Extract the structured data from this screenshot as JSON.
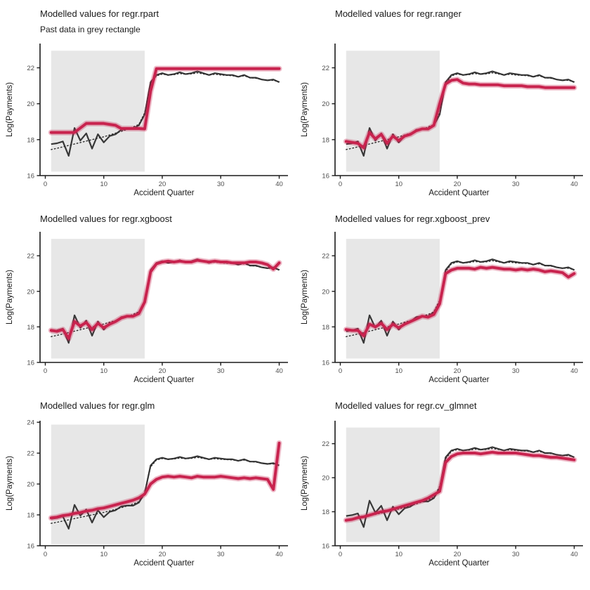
{
  "theme": {
    "accent": "#C8234E",
    "accent_halo": "rgba(200,35,78,0.32)",
    "actual_line": "#383838",
    "underlying_line": "#2b2b2b",
    "past_rect": "#E7E7E7",
    "axis": "#1a1a1a",
    "tick_text": "#4D4D4D",
    "title_text": "#1a1a1a"
  },
  "chart_data": {
    "type": "line",
    "layout": "2x3-grid",
    "x_label": "Accident Quarter",
    "y_label": "Log(Payments)",
    "x_ticks": [
      0,
      10,
      20,
      30,
      40
    ],
    "x_first": 1,
    "legend": "none",
    "series_names": [
      "actual",
      "underlying",
      "modelled"
    ],
    "shared": {
      "actual": [
        17.75,
        17.8,
        17.9,
        17.1,
        18.65,
        17.95,
        18.35,
        17.5,
        18.3,
        17.85,
        18.2,
        18.3,
        18.55,
        18.6,
        18.6,
        18.8,
        19.4,
        21.2,
        21.6,
        21.7,
        21.6,
        21.65,
        21.75,
        21.65,
        21.7,
        21.8,
        21.7,
        21.6,
        21.7,
        21.65,
        21.6,
        21.6,
        21.5,
        21.6,
        21.45,
        21.45,
        21.35,
        21.3,
        21.35,
        21.2
      ],
      "underlying": [
        17.45,
        17.52,
        17.6,
        17.68,
        17.76,
        17.84,
        17.92,
        18.0,
        18.08,
        18.16,
        18.26,
        18.36,
        18.46,
        18.58,
        18.7,
        18.85,
        19.5,
        21.1,
        21.55,
        21.65,
        21.6,
        21.62,
        21.68,
        21.64,
        21.66,
        21.72,
        21.66,
        21.6,
        21.64,
        21.6,
        21.58,
        21.56,
        21.5,
        21.55,
        21.45,
        21.42,
        21.35,
        21.3,
        21.3,
        21.22
      ]
    },
    "panels": [
      {
        "id": "regr.rpart",
        "title": "Modelled values for regr.rpart",
        "subtitle": "Past data in grey rectangle",
        "y_ticks": [
          16,
          18,
          20,
          22
        ],
        "y_lim": [
          16,
          23.35
        ],
        "past_rect": {
          "x0": 1,
          "x1": 17,
          "y0": 16.22,
          "y1": 22.95
        },
        "modelled": [
          18.4,
          18.4,
          18.4,
          18.4,
          18.4,
          18.65,
          18.9,
          18.9,
          18.9,
          18.9,
          18.85,
          18.8,
          18.62,
          18.62,
          18.62,
          18.62,
          18.6,
          20.7,
          21.95,
          21.95,
          21.95,
          21.95,
          21.95,
          21.95,
          21.95,
          21.95,
          21.95,
          21.95,
          21.95,
          21.95,
          21.95,
          21.95,
          21.95,
          21.95,
          21.95,
          21.95,
          21.95,
          21.95,
          21.95,
          21.95
        ]
      },
      {
        "id": "regr.ranger",
        "title": "Modelled values for regr.ranger",
        "subtitle": "",
        "y_ticks": [
          16,
          18,
          20,
          22
        ],
        "y_lim": [
          16,
          23.35
        ],
        "past_rect": {
          "x0": 1,
          "x1": 17,
          "y0": 16.22,
          "y1": 22.95
        },
        "modelled": [
          17.9,
          17.85,
          17.8,
          17.55,
          18.4,
          18.05,
          18.3,
          17.8,
          18.2,
          17.95,
          18.2,
          18.3,
          18.5,
          18.6,
          18.6,
          18.8,
          20.0,
          21.1,
          21.3,
          21.35,
          21.15,
          21.1,
          21.1,
          21.05,
          21.05,
          21.05,
          21.05,
          21.0,
          21.0,
          21.0,
          21.0,
          20.95,
          20.95,
          20.95,
          20.9,
          20.9,
          20.9,
          20.9,
          20.9,
          20.9
        ]
      },
      {
        "id": "regr.xgboost",
        "title": "Modelled values for regr.xgboost",
        "subtitle": "",
        "y_ticks": [
          16,
          18,
          20,
          22
        ],
        "y_lim": [
          16,
          23.35
        ],
        "past_rect": {
          "x0": 1,
          "x1": 17,
          "y0": 16.22,
          "y1": 22.95
        },
        "modelled": [
          17.8,
          17.75,
          17.85,
          17.35,
          18.3,
          18.05,
          18.25,
          17.85,
          18.2,
          17.95,
          18.15,
          18.3,
          18.5,
          18.6,
          18.6,
          18.75,
          19.4,
          21.1,
          21.55,
          21.65,
          21.7,
          21.65,
          21.7,
          21.65,
          21.65,
          21.75,
          21.7,
          21.65,
          21.7,
          21.65,
          21.65,
          21.6,
          21.6,
          21.6,
          21.65,
          21.65,
          21.6,
          21.5,
          21.25,
          21.6
        ]
      },
      {
        "id": "regr.xgboost_prev",
        "title": "Modelled values for regr.xgboost_prev",
        "subtitle": "",
        "y_ticks": [
          16,
          18,
          20,
          22
        ],
        "y_lim": [
          16,
          23.35
        ],
        "past_rect": {
          "x0": 1,
          "x1": 17,
          "y0": 16.22,
          "y1": 22.95
        },
        "modelled": [
          17.85,
          17.8,
          17.8,
          17.5,
          18.15,
          18.0,
          18.2,
          17.85,
          18.15,
          17.95,
          18.15,
          18.3,
          18.45,
          18.6,
          18.55,
          18.7,
          19.3,
          21.0,
          21.2,
          21.3,
          21.3,
          21.3,
          21.25,
          21.35,
          21.3,
          21.35,
          21.3,
          21.25,
          21.25,
          21.2,
          21.25,
          21.2,
          21.25,
          21.2,
          21.1,
          21.15,
          21.1,
          21.05,
          20.8,
          21.0
        ]
      },
      {
        "id": "regr.glm",
        "title": "Modelled values for regr.glm",
        "subtitle": "",
        "y_ticks": [
          16,
          18,
          20,
          22,
          24
        ],
        "y_lim": [
          16,
          24.1
        ],
        "past_rect": {
          "x0": 1,
          "x1": 17,
          "y0": 16.1,
          "y1": 23.85
        },
        "modelled": [
          17.8,
          17.85,
          17.95,
          18.0,
          18.1,
          18.15,
          18.25,
          18.3,
          18.4,
          18.45,
          18.55,
          18.65,
          18.75,
          18.85,
          18.95,
          19.1,
          19.35,
          20.0,
          20.3,
          20.45,
          20.5,
          20.45,
          20.5,
          20.45,
          20.4,
          20.5,
          20.45,
          20.45,
          20.45,
          20.5,
          20.45,
          20.4,
          20.35,
          20.4,
          20.35,
          20.4,
          20.35,
          20.3,
          19.65,
          22.65
        ]
      },
      {
        "id": "regr.cv_glmnet",
        "title": "Modelled values for regr.cv_glmnet",
        "subtitle": "",
        "y_ticks": [
          16,
          18,
          20,
          22
        ],
        "y_lim": [
          16,
          23.35
        ],
        "past_rect": {
          "x0": 1,
          "x1": 17,
          "y0": 16.22,
          "y1": 22.95
        },
        "modelled": [
          17.5,
          17.55,
          17.65,
          17.7,
          17.8,
          17.9,
          18.0,
          18.05,
          18.15,
          18.25,
          18.35,
          18.45,
          18.55,
          18.65,
          18.8,
          19.0,
          19.2,
          20.9,
          21.25,
          21.4,
          21.45,
          21.45,
          21.45,
          21.4,
          21.45,
          21.5,
          21.45,
          21.45,
          21.45,
          21.45,
          21.4,
          21.35,
          21.3,
          21.3,
          21.25,
          21.2,
          21.2,
          21.15,
          21.1,
          21.05
        ]
      }
    ]
  }
}
